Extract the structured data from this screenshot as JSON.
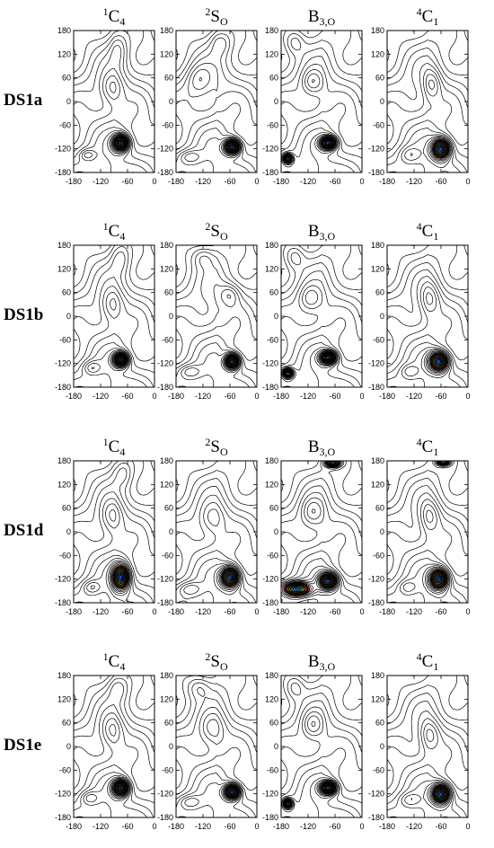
{
  "figure": {
    "rows": [
      "DS1a",
      "DS1b",
      "DS1d",
      "DS1e"
    ],
    "columns": [
      {
        "id": "1C4",
        "sup": "1",
        "main": "C",
        "sub": "4"
      },
      {
        "id": "2SO",
        "sup": "2",
        "main": "S",
        "sub": "O"
      },
      {
        "id": "B3O",
        "sup": "",
        "main": "B",
        "sub": "3,O"
      },
      {
        "id": "4C1",
        "sup": "4",
        "main": "C",
        "sub": "1"
      }
    ]
  },
  "chart_data": {
    "type": "contour",
    "grid": false,
    "xlim": [
      -180,
      0
    ],
    "ylim": [
      -180,
      180
    ],
    "xticks": [
      -180,
      -120,
      -60,
      0
    ],
    "yticks": [
      -180,
      -120,
      -60,
      0,
      60,
      120,
      180
    ],
    "colors": {
      "lines": "#000000",
      "levels": [
        "#e8262c",
        "#ff8c1a",
        "#ffd21f",
        "#52e0c8",
        "#2f8ad8",
        "#3b3fb8"
      ]
    },
    "panels": [
      {
        "row": "DS1a",
        "column": "1C4",
        "minima": [
          {
            "x": -75,
            "y": -105,
            "depth": 6,
            "sx": 12,
            "sy": 14
          }
        ],
        "ridges": [
          {
            "x": -150,
            "y": -135,
            "sx": 12,
            "sy": 10,
            "a": 0.6
          },
          {
            "x": -95,
            "y": 35,
            "sx": 18,
            "sy": 28,
            "a": 0.7
          },
          {
            "x": -80,
            "y": 135,
            "sx": 14,
            "sy": 30,
            "a": 0.5
          }
        ]
      },
      {
        "row": "DS1a",
        "column": "2SO",
        "minima": [
          {
            "x": -55,
            "y": -115,
            "depth": 6,
            "sx": 12,
            "sy": 13
          }
        ],
        "ridges": [
          {
            "x": -150,
            "y": -140,
            "sx": 18,
            "sy": 12,
            "a": 0.6
          },
          {
            "x": -130,
            "y": 55,
            "sx": 20,
            "sy": 28,
            "a": 0.6
          },
          {
            "x": -80,
            "y": 150,
            "sx": 16,
            "sy": 22,
            "a": 0.5
          }
        ]
      },
      {
        "row": "DS1a",
        "column": "B3O",
        "minima": [
          {
            "x": -75,
            "y": -105,
            "depth": 6,
            "sx": 12,
            "sy": 11
          },
          {
            "x": -165,
            "y": -145,
            "depth": 4,
            "sx": 7,
            "sy": 8
          }
        ],
        "ridges": [
          {
            "x": -110,
            "y": 50,
            "sx": 16,
            "sy": 22,
            "a": 0.7
          },
          {
            "x": -150,
            "y": 150,
            "sx": 14,
            "sy": 20,
            "a": 0.5
          }
        ]
      },
      {
        "row": "DS1a",
        "column": "4C1",
        "minima": [
          {
            "x": -60,
            "y": -120,
            "depth": 6,
            "sx": 14,
            "sy": 18
          }
        ],
        "ridges": [
          {
            "x": -130,
            "y": -135,
            "sx": 16,
            "sy": 14,
            "a": 0.5
          },
          {
            "x": -80,
            "y": 45,
            "sx": 14,
            "sy": 28,
            "a": 0.7
          }
        ]
      },
      {
        "row": "DS1b",
        "column": "1C4",
        "minima": [
          {
            "x": -75,
            "y": -110,
            "depth": 6,
            "sx": 11,
            "sy": 12
          }
        ],
        "ridges": [
          {
            "x": -140,
            "y": -130,
            "sx": 14,
            "sy": 12,
            "a": 0.6
          },
          {
            "x": -95,
            "y": 30,
            "sx": 18,
            "sy": 30,
            "a": 0.7
          },
          {
            "x": -75,
            "y": 150,
            "sx": 14,
            "sy": 28,
            "a": 0.5
          }
        ]
      },
      {
        "row": "DS1b",
        "column": "2SO",
        "minima": [
          {
            "x": -55,
            "y": -115,
            "depth": 6,
            "sx": 11,
            "sy": 13
          }
        ],
        "ridges": [
          {
            "x": -150,
            "y": -140,
            "sx": 18,
            "sy": 12,
            "a": 0.6
          },
          {
            "x": -60,
            "y": 55,
            "sx": 16,
            "sy": 20,
            "a": 0.6
          },
          {
            "x": -120,
            "y": 150,
            "sx": 18,
            "sy": 20,
            "a": 0.5
          }
        ]
      },
      {
        "row": "DS1b",
        "column": "B3O",
        "minima": [
          {
            "x": -75,
            "y": -105,
            "depth": 6,
            "sx": 12,
            "sy": 11
          },
          {
            "x": -165,
            "y": -145,
            "depth": 4,
            "sx": 8,
            "sy": 8
          }
        ],
        "ridges": [
          {
            "x": -115,
            "y": 45,
            "sx": 18,
            "sy": 24,
            "a": 0.7
          },
          {
            "x": -150,
            "y": 150,
            "sx": 14,
            "sy": 20,
            "a": 0.5
          }
        ]
      },
      {
        "row": "DS1b",
        "column": "4C1",
        "minima": [
          {
            "x": -65,
            "y": -115,
            "depth": 6,
            "sx": 15,
            "sy": 17
          }
        ],
        "ridges": [
          {
            "x": -130,
            "y": -140,
            "sx": 14,
            "sy": 12,
            "a": 0.5
          },
          {
            "x": -85,
            "y": 45,
            "sx": 16,
            "sy": 30,
            "a": 0.7
          }
        ]
      },
      {
        "row": "DS1d",
        "column": "1C4",
        "minima": [
          {
            "x": -75,
            "y": -115,
            "depth": 6,
            "sx": 13,
            "sy": 22
          }
        ],
        "ridges": [
          {
            "x": -140,
            "y": -140,
            "sx": 14,
            "sy": 12,
            "a": 0.6
          },
          {
            "x": -95,
            "y": 40,
            "sx": 18,
            "sy": 30,
            "a": 0.7
          },
          {
            "x": -70,
            "y": 150,
            "sx": 14,
            "sy": 24,
            "a": 0.5
          }
        ]
      },
      {
        "row": "DS1d",
        "column": "2SO",
        "minima": [
          {
            "x": -60,
            "y": -115,
            "depth": 6,
            "sx": 14,
            "sy": 18
          }
        ],
        "ridges": [
          {
            "x": -150,
            "y": -145,
            "sx": 18,
            "sy": 12,
            "a": 0.6
          },
          {
            "x": -100,
            "y": 35,
            "sx": 20,
            "sy": 28,
            "a": 0.6
          }
        ]
      },
      {
        "row": "DS1d",
        "column": "B3O",
        "minima": [
          {
            "x": -75,
            "y": -125,
            "depth": 6,
            "sx": 14,
            "sy": 14
          },
          {
            "x": -145,
            "y": -145,
            "depth": 5,
            "sx": 22,
            "sy": 12
          },
          {
            "x": -65,
            "y": 175,
            "depth": 4,
            "sx": 12,
            "sy": 7
          }
        ],
        "ridges": [
          {
            "x": -110,
            "y": 50,
            "sx": 18,
            "sy": 26,
            "a": 0.7
          }
        ]
      },
      {
        "row": "DS1d",
        "column": "4C1",
        "minima": [
          {
            "x": -65,
            "y": -120,
            "depth": 6,
            "sx": 14,
            "sy": 18
          },
          {
            "x": -55,
            "y": 178,
            "depth": 4,
            "sx": 10,
            "sy": 6
          }
        ],
        "ridges": [
          {
            "x": -135,
            "y": -140,
            "sx": 14,
            "sy": 12,
            "a": 0.5
          },
          {
            "x": -85,
            "y": 40,
            "sx": 16,
            "sy": 30,
            "a": 0.7
          }
        ]
      },
      {
        "row": "DS1e",
        "column": "1C4",
        "minima": [
          {
            "x": -75,
            "y": -105,
            "depth": 6,
            "sx": 12,
            "sy": 14
          }
        ],
        "ridges": [
          {
            "x": -145,
            "y": -130,
            "sx": 14,
            "sy": 12,
            "a": 0.6
          },
          {
            "x": -95,
            "y": 40,
            "sx": 18,
            "sy": 30,
            "a": 0.7
          },
          {
            "x": -80,
            "y": 150,
            "sx": 16,
            "sy": 24,
            "a": 0.5
          }
        ]
      },
      {
        "row": "DS1e",
        "column": "2SO",
        "minima": [
          {
            "x": -55,
            "y": -115,
            "depth": 6,
            "sx": 12,
            "sy": 13
          }
        ],
        "ridges": [
          {
            "x": -150,
            "y": -140,
            "sx": 18,
            "sy": 12,
            "a": 0.6
          },
          {
            "x": -100,
            "y": 45,
            "sx": 20,
            "sy": 28,
            "a": 0.6
          },
          {
            "x": -130,
            "y": 150,
            "sx": 18,
            "sy": 20,
            "a": 0.5
          }
        ]
      },
      {
        "row": "DS1e",
        "column": "B3O",
        "minima": [
          {
            "x": -75,
            "y": -105,
            "depth": 6,
            "sx": 12,
            "sy": 11
          },
          {
            "x": -165,
            "y": -145,
            "depth": 4,
            "sx": 7,
            "sy": 8
          }
        ],
        "ridges": [
          {
            "x": -110,
            "y": 55,
            "sx": 16,
            "sy": 24,
            "a": 0.7
          },
          {
            "x": -150,
            "y": 150,
            "sx": 14,
            "sy": 20,
            "a": 0.5
          }
        ]
      },
      {
        "row": "DS1e",
        "column": "4C1",
        "minima": [
          {
            "x": -60,
            "y": -120,
            "depth": 6,
            "sx": 14,
            "sy": 17
          }
        ],
        "ridges": [
          {
            "x": -130,
            "y": -135,
            "sx": 16,
            "sy": 12,
            "a": 0.5
          },
          {
            "x": -85,
            "y": 30,
            "sx": 16,
            "sy": 28,
            "a": 0.7
          }
        ]
      }
    ]
  }
}
